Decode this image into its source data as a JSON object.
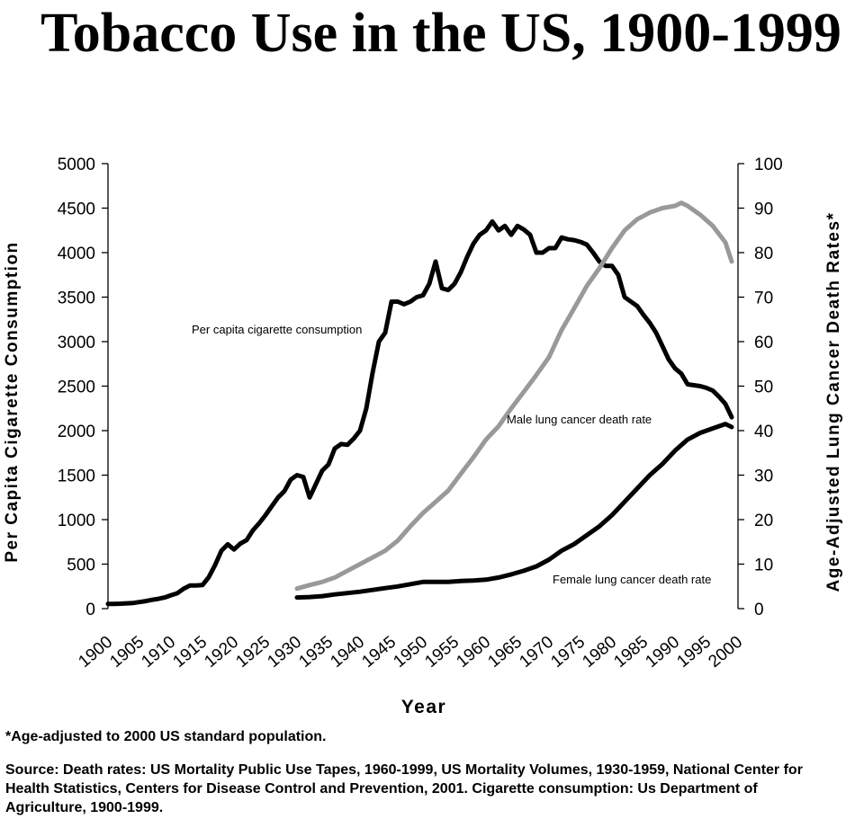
{
  "chart_data": {
    "type": "line",
    "title": "Tobacco Use in the US, 1900-1999",
    "xlabel": "Year",
    "ylabel_left": "Per Capita Cigarette Consumption",
    "ylabel_right": "Age-Adjusted Lung Cancer Death Rates*",
    "xlim": [
      1900,
      2000
    ],
    "ylim_left": [
      0,
      5000
    ],
    "ylim_right": [
      0,
      100
    ],
    "x_ticks": [
      "1900",
      "1905",
      "1910",
      "1915",
      "1920",
      "1925",
      "1930",
      "1935",
      "1940",
      "1945",
      "1950",
      "1955",
      "1960",
      "1965",
      "1970",
      "1975",
      "1980",
      "1985",
      "1990",
      "1995",
      "2000"
    ],
    "y_ticks_left": [
      "0",
      "500",
      "1000",
      "1500",
      "2000",
      "2500",
      "3000",
      "3500",
      "4000",
      "4500",
      "5000"
    ],
    "y_ticks_right": [
      "0",
      "10",
      "20",
      "30",
      "40",
      "50",
      "60",
      "70",
      "80",
      "90",
      "100"
    ],
    "grid": false,
    "series": [
      {
        "name": "Per capita cigarette consumption",
        "axis": "left",
        "color": "#000000",
        "x": [
          1900,
          1901,
          1902,
          1903,
          1904,
          1905,
          1906,
          1907,
          1908,
          1909,
          1910,
          1911,
          1912,
          1913,
          1914,
          1915,
          1916,
          1917,
          1918,
          1919,
          1920,
          1921,
          1922,
          1923,
          1924,
          1925,
          1926,
          1927,
          1928,
          1929,
          1930,
          1931,
          1932,
          1933,
          1934,
          1935,
          1936,
          1937,
          1938,
          1939,
          1940,
          1941,
          1942,
          1943,
          1944,
          1945,
          1946,
          1947,
          1948,
          1949,
          1950,
          1951,
          1952,
          1953,
          1954,
          1955,
          1956,
          1957,
          1958,
          1959,
          1960,
          1961,
          1962,
          1963,
          1964,
          1965,
          1966,
          1967,
          1968,
          1969,
          1970,
          1971,
          1972,
          1973,
          1974,
          1975,
          1976,
          1977,
          1978,
          1979,
          1980,
          1981,
          1982,
          1983,
          1984,
          1985,
          1986,
          1987,
          1988,
          1989,
          1990,
          1991,
          1992,
          1993,
          1994,
          1995,
          1996,
          1997,
          1998,
          1999
        ],
        "values": [
          54,
          54,
          56,
          60,
          64,
          74,
          85,
          99,
          110,
          125,
          151,
          173,
          223,
          260,
          260,
          265,
          355,
          490,
          650,
          722,
          665,
          730,
          770,
          880,
          960,
          1050,
          1150,
          1250,
          1320,
          1450,
          1500,
          1480,
          1250,
          1400,
          1550,
          1620,
          1800,
          1850,
          1840,
          1910,
          2000,
          2250,
          2650,
          3000,
          3100,
          3450,
          3450,
          3420,
          3450,
          3500,
          3520,
          3650,
          3900,
          3600,
          3580,
          3650,
          3780,
          3950,
          4100,
          4200,
          4250,
          4350,
          4250,
          4300,
          4200,
          4300,
          4260,
          4200,
          4000,
          4000,
          4050,
          4050,
          4170,
          4150,
          4140,
          4120,
          4090,
          4000,
          3900,
          3850,
          3850,
          3750,
          3500,
          3450,
          3400,
          3300,
          3210,
          3100,
          2950,
          2800,
          2700,
          2640,
          2520,
          2510,
          2500,
          2480,
          2450,
          2380,
          2300,
          2150
        ]
      },
      {
        "name": "Male lung cancer death rate",
        "axis": "right",
        "color": "#999999",
        "x": [
          1930,
          1932,
          1934,
          1936,
          1938,
          1940,
          1942,
          1944,
          1946,
          1948,
          1950,
          1952,
          1954,
          1956,
          1958,
          1960,
          1962,
          1964,
          1966,
          1968,
          1970,
          1972,
          1974,
          1976,
          1978,
          1980,
          1982,
          1984,
          1986,
          1988,
          1990,
          1991,
          1992,
          1994,
          1996,
          1998,
          1999
        ],
        "values": [
          4.5,
          5.3,
          6,
          7,
          8.5,
          10,
          11.5,
          13,
          15.3,
          18.5,
          21.5,
          24,
          26.5,
          30.3,
          34,
          38,
          41,
          45,
          48.7,
          52.5,
          56.5,
          62.6,
          67.5,
          72.5,
          76.5,
          81,
          85,
          87.5,
          89,
          90,
          90.5,
          91.2,
          90.5,
          88.5,
          86,
          82.3,
          78
        ]
      },
      {
        "name": "Female lung cancer death rate",
        "axis": "right",
        "color": "#000000",
        "x": [
          1930,
          1932,
          1934,
          1936,
          1938,
          1940,
          1942,
          1944,
          1946,
          1948,
          1950,
          1952,
          1954,
          1956,
          1958,
          1960,
          1962,
          1964,
          1966,
          1968,
          1970,
          1972,
          1974,
          1976,
          1978,
          1980,
          1982,
          1984,
          1986,
          1988,
          1990,
          1992,
          1994,
          1996,
          1998,
          1999
        ],
        "values": [
          2.5,
          2.6,
          2.8,
          3.2,
          3.5,
          3.8,
          4.2,
          4.6,
          5,
          5.5,
          6,
          6,
          6,
          6.2,
          6.3,
          6.5,
          7,
          7.7,
          8.5,
          9.5,
          11,
          13,
          14.5,
          16.5,
          18.5,
          21,
          24,
          27,
          30,
          32.5,
          35.5,
          38,
          39.5,
          40.5,
          41.5,
          40.8
        ]
      }
    ],
    "annotations": [
      {
        "text": "Per capita cigarette consumption"
      },
      {
        "text": "Male lung cancer death rate"
      },
      {
        "text": "Female lung cancer death rate"
      }
    ]
  },
  "footnote": "*Age-adjusted to 2000 US standard population.",
  "source_text": "Source: Death rates: US Mortality Public Use Tapes, 1960-1999, US Mortality Volumes, 1930-1959, National Center for Health Statistics, Centers for Disease Control and Prevention, 2001. Cigarette consumption: Us Department of Agriculture, 1900-1999."
}
